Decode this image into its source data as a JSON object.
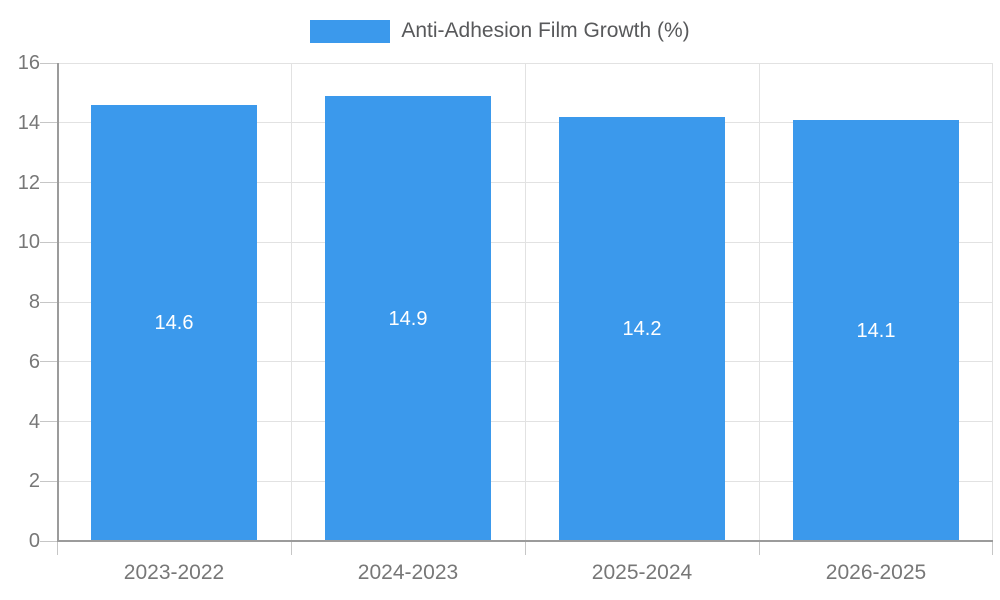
{
  "chart_data": {
    "type": "bar",
    "legend": [
      {
        "label": "Anti-Adhesion Film Growth (%)",
        "color": "#3b99ec"
      }
    ],
    "legend_position": "top-center",
    "categories": [
      "2023-2022",
      "2024-2023",
      "2025-2024",
      "2026-2025"
    ],
    "series": [
      {
        "name": "Anti-Adhesion Film Growth (%)",
        "values": [
          14.6,
          14.9,
          14.2,
          14.1
        ]
      }
    ],
    "value_labels": [
      "14.6",
      "14.9",
      "14.2",
      "14.1"
    ],
    "ylim": [
      0,
      16
    ],
    "yticks": [
      0,
      2,
      4,
      6,
      8,
      10,
      12,
      14,
      16
    ],
    "grid": true
  },
  "colors": {
    "bar": "#3b99ec",
    "value_label": "#ffffff",
    "axis_line": "#9b9b9b",
    "gridline": "#e2e2e2",
    "tick": "#c6c6c6",
    "tick_label": "#777777",
    "legend_text": "#58595b",
    "background": "#ffffff"
  }
}
